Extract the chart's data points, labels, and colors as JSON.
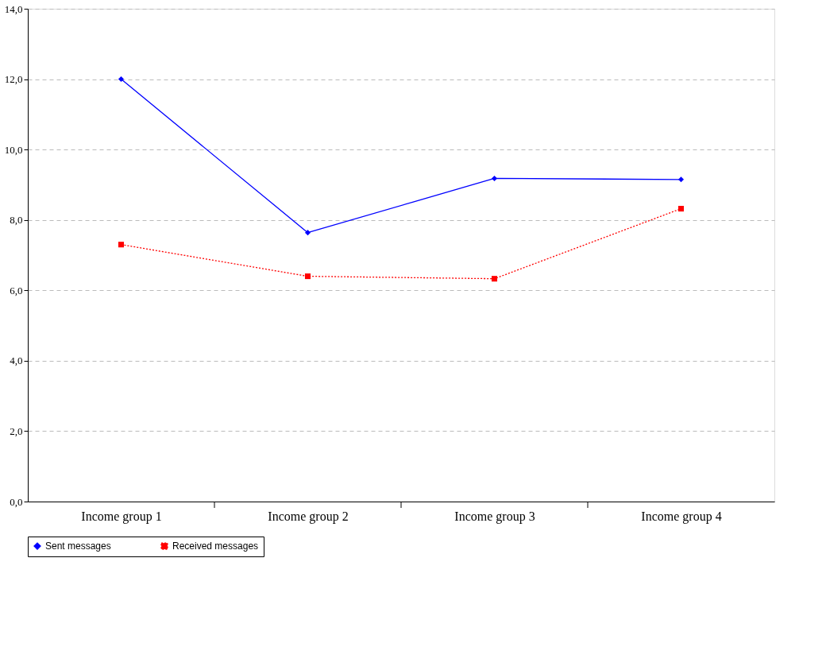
{
  "chart_data": {
    "type": "line",
    "categories": [
      "Income group 1",
      "Income group 2",
      "Income group 3",
      "Income group 4"
    ],
    "series": [
      {
        "name": "Sent messages",
        "color": "#0000ff",
        "marker": "diamond",
        "line_style": "solid",
        "values": [
          12.0,
          7.64,
          9.18,
          9.15
        ]
      },
      {
        "name": "Received messages",
        "color": "#ff0000",
        "marker": "square",
        "line_style": "dotted",
        "values": [
          7.3,
          6.4,
          6.33,
          8.32
        ]
      }
    ],
    "ylim": [
      0,
      14
    ],
    "yticks": [
      {
        "value": 0,
        "label": "0,0"
      },
      {
        "value": 2,
        "label": "2,0"
      },
      {
        "value": 4,
        "label": "4,0"
      },
      {
        "value": 6,
        "label": "6,0"
      },
      {
        "value": 8,
        "label": "8,0"
      },
      {
        "value": 10,
        "label": "10,0"
      },
      {
        "value": 12,
        "label": "12,0"
      },
      {
        "value": 14,
        "label": "14,0"
      }
    ],
    "grid": "y",
    "legend": "bottom"
  }
}
